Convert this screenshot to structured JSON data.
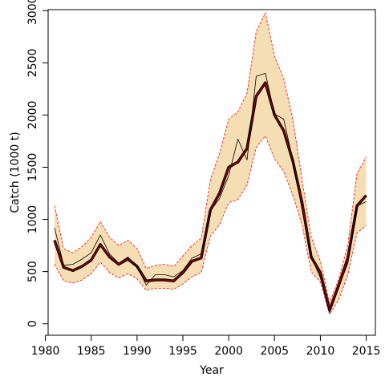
{
  "chart_data": {
    "type": "line",
    "xlabel": "Year",
    "ylabel": "Catch (1000 t)",
    "xlim": [
      1980.3,
      2016.0
    ],
    "ylim": [
      -110,
      3010
    ],
    "x_ticks": [
      1980,
      1985,
      1990,
      1995,
      2000,
      2005,
      2010,
      2015
    ],
    "y_ticks": [
      0,
      500,
      1000,
      1500,
      2000,
      2500,
      3000
    ],
    "grid": false,
    "x": [
      1981,
      1982,
      1983,
      1984,
      1985,
      1986,
      1987,
      1988,
      1989,
      1990,
      1991,
      1992,
      1993,
      1994,
      1995,
      1996,
      1997,
      1998,
      1999,
      2000,
      2001,
      2002,
      2003,
      2004,
      2005,
      2006,
      2007,
      2008,
      2009,
      2010,
      2011,
      2012,
      2013,
      2014,
      2015
    ],
    "series": [
      {
        "role": "upper-bound",
        "color": "#ff0000",
        "values": [
          1130,
          720,
          680,
          740,
          830,
          980,
          830,
          750,
          800,
          720,
          530,
          560,
          570,
          550,
          650,
          750,
          820,
          1380,
          1630,
          1960,
          2030,
          2210,
          2800,
          2980,
          2560,
          2350,
          1960,
          1380,
          830,
          600,
          200,
          430,
          760,
          1440,
          1600
        ]
      },
      {
        "role": "lower-bound",
        "color": "#ff0000",
        "values": [
          570,
          410,
          390,
          420,
          480,
          590,
          490,
          440,
          480,
          430,
          320,
          340,
          340,
          330,
          380,
          450,
          490,
          840,
          950,
          1160,
          1190,
          1330,
          1690,
          1800,
          1580,
          1460,
          1230,
          950,
          500,
          400,
          90,
          230,
          470,
          870,
          940
        ]
      },
      {
        "role": "estimate",
        "color": "#8b0000",
        "values": [
          800,
          540,
          510,
          550,
          610,
          760,
          640,
          570,
          620,
          550,
          410,
          420,
          420,
          410,
          490,
          600,
          630,
          1090,
          1250,
          1500,
          1550,
          1680,
          2180,
          2310,
          2000,
          1850,
          1560,
          1160,
          640,
          490,
          130,
          370,
          630,
          1130,
          1230
        ]
      },
      {
        "role": "observed",
        "color": "#000000",
        "values": [
          920,
          560,
          570,
          620,
          680,
          850,
          670,
          580,
          640,
          550,
          370,
          470,
          470,
          450,
          510,
          630,
          670,
          1080,
          1200,
          1420,
          1770,
          1570,
          2370,
          2400,
          2010,
          1960,
          1570,
          1090,
          640,
          440,
          110,
          350,
          580,
          1130,
          1170
        ]
      }
    ]
  }
}
